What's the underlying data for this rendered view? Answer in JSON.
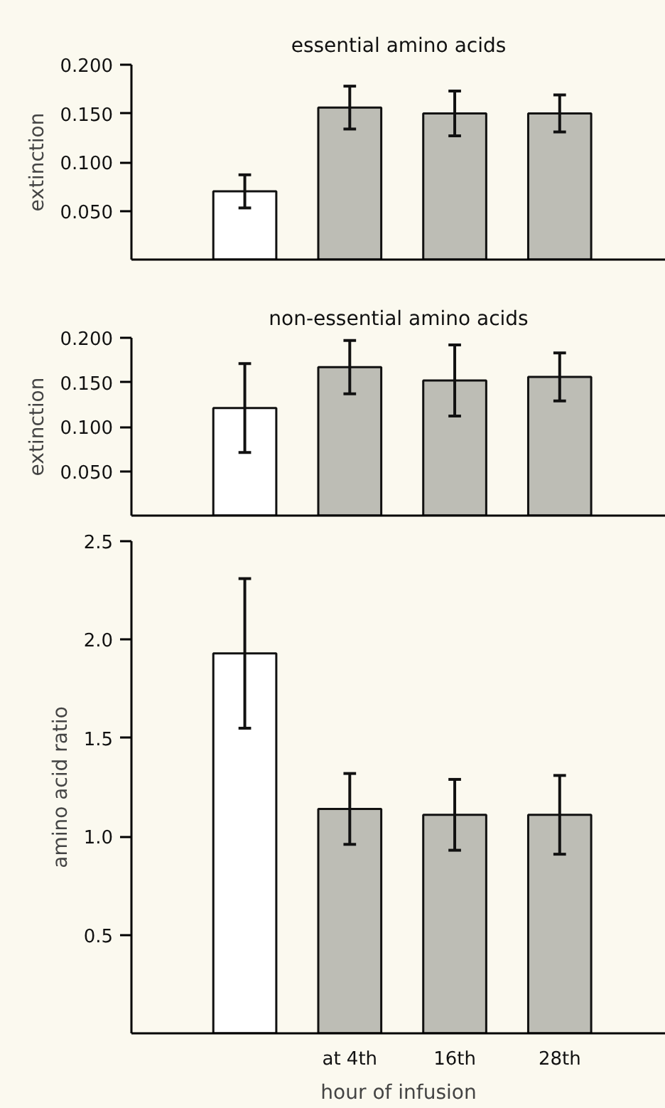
{
  "chart_data": [
    {
      "type": "bar",
      "title": "essential amino acids",
      "ylabel": "extinction",
      "categories": [
        null,
        null,
        null,
        null
      ],
      "values": [
        0.07,
        0.156,
        0.15,
        0.15
      ],
      "errors": [
        0.017,
        0.022,
        0.023,
        0.019
      ],
      "colors": [
        "#ffffff",
        "#bdbdb5",
        "#bdbdb5",
        "#bdbdb5"
      ],
      "ylim": [
        0,
        0.2
      ],
      "yticks": [
        {
          "value": 0.05,
          "label": "0.050"
        },
        {
          "value": 0.1,
          "label": "0.100"
        },
        {
          "value": 0.15,
          "label": "0.150"
        },
        {
          "value": 0.2,
          "label": "0.200"
        }
      ],
      "grid": false,
      "tick_labels": "y"
    },
    {
      "type": "bar",
      "title": "non-essential amino acids",
      "ylabel": "extinction",
      "categories": [
        null,
        null,
        null,
        null
      ],
      "values": [
        0.121,
        0.167,
        0.152,
        0.156
      ],
      "errors": [
        0.05,
        0.03,
        0.04,
        0.027
      ],
      "colors": [
        "#ffffff",
        "#bdbdb5",
        "#bdbdb5",
        "#bdbdb5"
      ],
      "ylim": [
        0,
        0.2
      ],
      "yticks": [
        {
          "value": 0.05,
          "label": "0.050"
        },
        {
          "value": 0.1,
          "label": "0.100"
        },
        {
          "value": 0.15,
          "label": "0.150"
        },
        {
          "value": 0.2,
          "label": "0.200"
        }
      ],
      "grid": false,
      "tick_labels": "y"
    },
    {
      "type": "bar",
      "xlabel": "hour of infusion",
      "ylabel": "amino acid ratio",
      "categories": [
        null,
        "at 4th",
        "16th",
        "28th"
      ],
      "values": [
        1.93,
        1.14,
        1.11,
        1.11
      ],
      "errors": [
        0.38,
        0.18,
        0.18,
        0.2
      ],
      "colors": [
        "#ffffff",
        "#bdbdb5",
        "#bdbdb5",
        "#bdbdb5"
      ],
      "ylim": [
        0,
        2.5
      ],
      "yticks": [
        0.5,
        {
          "value": 1.0,
          "label": "1.0"
        },
        1.5,
        {
          "value": 2.0,
          "label": "2.0"
        },
        2.5
      ],
      "grid": false
    }
  ]
}
